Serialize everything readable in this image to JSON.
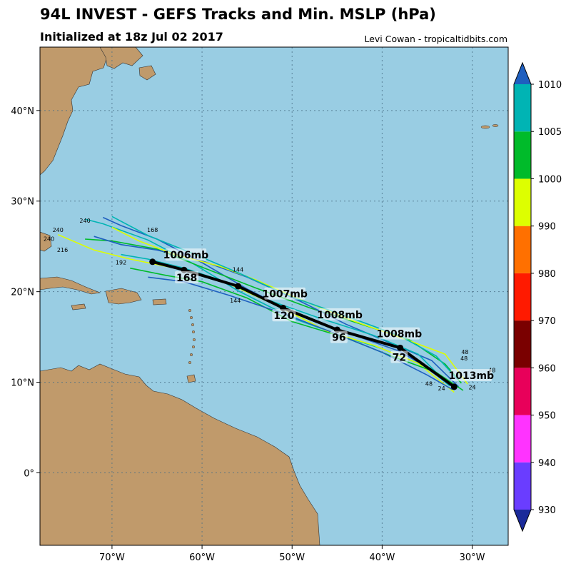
{
  "header": {
    "title": "94L INVEST - GEFS Tracks and Min. MSLP (hPa)",
    "subtitle": "Initialized at 18z Jul 02 2017",
    "credit": "Levi Cowan - tropicaltidbits.com"
  },
  "map": {
    "lon_range": [
      -78,
      -26
    ],
    "lat_range": [
      -8,
      47
    ],
    "lon_ticks": [
      {
        "value": -70,
        "label": "70°W"
      },
      {
        "value": -60,
        "label": "60°W"
      },
      {
        "value": -50,
        "label": "50°W"
      },
      {
        "value": -40,
        "label": "40°W"
      },
      {
        "value": -30,
        "label": "30°W"
      }
    ],
    "lat_ticks": [
      {
        "value": 0,
        "label": "0°"
      },
      {
        "value": 10,
        "label": "10°N"
      },
      {
        "value": 20,
        "label": "20°N"
      },
      {
        "value": 30,
        "label": "30°N"
      },
      {
        "value": 40,
        "label": "40°N"
      }
    ],
    "ocean_color": "#99cde3",
    "land_color": "#c09a6b",
    "grid": "dotted"
  },
  "colorbar": {
    "levels": [
      930,
      940,
      950,
      960,
      970,
      980,
      990,
      1000,
      1005,
      1010
    ],
    "colors": [
      "#6a3dff",
      "#ff33ff",
      "#e8005a",
      "#7a0000",
      "#ff1a00",
      "#ff7000",
      "#ddff00",
      "#00bb2a",
      "#00b4b4"
    ],
    "under_color": "#1a2a9a",
    "over_color": "#1f5fbf"
  },
  "chart_data": {
    "type": "track-map",
    "mean_track": [
      {
        "lon": -32,
        "lat": 9.5
      },
      {
        "lon": -38,
        "lat": 13.8
      },
      {
        "lon": -45,
        "lat": 15.8
      },
      {
        "lon": -51,
        "lat": 18.2
      },
      {
        "lon": -56,
        "lat": 20.6
      },
      {
        "lon": -62,
        "lat": 22.4
      },
      {
        "lon": -65.5,
        "lat": 23.3
      }
    ],
    "annotations": [
      {
        "label": "1013mb",
        "lon": -30.1,
        "lat": 10.6
      },
      {
        "label": "1008mb",
        "lon": -38.1,
        "lat": 15.2
      },
      {
        "label": "72",
        "lon": -38.1,
        "lat": 12.6
      },
      {
        "label": "1008mb",
        "lon": -44.7,
        "lat": 17.3
      },
      {
        "label": "96",
        "lon": -44.8,
        "lat": 14.8
      },
      {
        "label": "1007mb",
        "lon": -50.8,
        "lat": 19.6
      },
      {
        "label": "120",
        "lon": -50.9,
        "lat": 17.2
      },
      {
        "label": "1006mb",
        "lon": -61.8,
        "lat": 23.9
      },
      {
        "label": "168",
        "lon": -61.7,
        "lat": 21.4
      }
    ],
    "member_colors": [
      "#1f5fbf",
      "#00b4b4",
      "#00bb2a",
      "#ddff00"
    ],
    "member_tracks": [
      [
        [
          -31.8,
          9.3
        ],
        [
          -34,
          11
        ],
        [
          -38,
          13.4
        ],
        [
          -42,
          14.8
        ],
        [
          -46,
          16.2
        ],
        [
          -50,
          17.8
        ],
        [
          -55,
          20.3
        ],
        [
          -60,
          23.2
        ],
        [
          -65,
          25.8
        ],
        [
          -69,
          27.3
        ],
        [
          -71,
          28.2
        ]
      ],
      [
        [
          -32.5,
          9.6
        ],
        [
          -35,
          11.7
        ],
        [
          -40,
          13.7
        ],
        [
          -45,
          15.3
        ],
        [
          -50,
          17.1
        ],
        [
          -56,
          20.1
        ],
        [
          -61,
          23.1
        ],
        [
          -66,
          25.7
        ],
        [
          -71,
          27.5
        ],
        [
          -73,
          28
        ]
      ],
      [
        [
          -31.2,
          9.9
        ],
        [
          -33,
          12
        ],
        [
          -37,
          14.7
        ],
        [
          -42,
          16.3
        ],
        [
          -48,
          18.2
        ],
        [
          -54,
          20.4
        ],
        [
          -60,
          22.7
        ],
        [
          -65,
          24.7
        ],
        [
          -70,
          25.6
        ],
        [
          -73,
          25.8
        ]
      ],
      [
        [
          -32,
          8.9
        ],
        [
          -36,
          12.1
        ],
        [
          -41,
          14.1
        ],
        [
          -46,
          15.6
        ],
        [
          -52,
          18.6
        ],
        [
          -58,
          21.3
        ],
        [
          -63,
          22.6
        ],
        [
          -68,
          23.6
        ],
        [
          -72,
          24.6
        ],
        [
          -76,
          26.3
        ]
      ],
      [
        [
          -31.5,
          9.5
        ],
        [
          -34.5,
          12.4
        ],
        [
          -39,
          14.3
        ],
        [
          -44,
          16.4
        ],
        [
          -49,
          18.9
        ],
        [
          -55,
          21.6
        ],
        [
          -60,
          23.4
        ],
        [
          -65,
          24.6
        ],
        [
          -69,
          25.2
        ],
        [
          -72,
          26.1
        ]
      ],
      [
        [
          -33,
          10.1
        ],
        [
          -36,
          13.1
        ],
        [
          -41,
          15.2
        ],
        [
          -47,
          17.1
        ],
        [
          -53,
          19.2
        ],
        [
          -58,
          21.3
        ],
        [
          -62,
          22.6
        ],
        [
          -66,
          23.6
        ],
        [
          -69,
          24.1
        ]
      ],
      [
        [
          -31,
          9.1
        ],
        [
          -34,
          11.1
        ],
        [
          -39,
          12.9
        ],
        [
          -44,
          14.9
        ],
        [
          -50,
          16.7
        ],
        [
          -55,
          19.3
        ],
        [
          -60,
          21.1
        ],
        [
          -64,
          21.8
        ],
        [
          -68,
          22.6
        ]
      ],
      [
        [
          -30.5,
          9.8
        ],
        [
          -33,
          13.1
        ],
        [
          -37,
          14.6
        ],
        [
          -43,
          16.7
        ],
        [
          -49,
          19.1
        ],
        [
          -54,
          21.3
        ],
        [
          -58,
          22.8
        ],
        [
          -63,
          24.1
        ],
        [
          -67,
          25.6
        ],
        [
          -70,
          27.1
        ]
      ],
      [
        [
          -32.2,
          9.2
        ],
        [
          -35,
          10.8
        ],
        [
          -40,
          13.3
        ],
        [
          -45,
          15.3
        ],
        [
          -51,
          17.6
        ],
        [
          -57,
          19.6
        ],
        [
          -62,
          21.1
        ],
        [
          -66,
          21.6
        ]
      ],
      [
        [
          -31.6,
          10.3
        ],
        [
          -34,
          12.9
        ],
        [
          -38,
          15.1
        ],
        [
          -44,
          17.3
        ],
        [
          -50,
          19.4
        ],
        [
          -56,
          22.1
        ],
        [
          -61,
          24.2
        ],
        [
          -66,
          26.2
        ],
        [
          -70,
          28.3
        ]
      ]
    ],
    "extra_markers": [
      {
        "label": "48",
        "lon": -27.8,
        "lat": 11.1
      },
      {
        "label": "48",
        "lon": -30.8,
        "lat": 13.1
      },
      {
        "label": "48",
        "lon": -30.9,
        "lat": 12.4
      },
      {
        "label": "48",
        "lon": -34.8,
        "lat": 9.6
      },
      {
        "label": "24",
        "lon": -30,
        "lat": 9.2
      },
      {
        "label": "24",
        "lon": -33.4,
        "lat": 9.1
      },
      {
        "label": "240",
        "lon": -73,
        "lat": 27.6
      },
      {
        "label": "240",
        "lon": -76,
        "lat": 26.6
      },
      {
        "label": "240",
        "lon": -77,
        "lat": 25.6
      },
      {
        "label": "216",
        "lon": -75.5,
        "lat": 24.4
      },
      {
        "label": "192",
        "lon": -69,
        "lat": 23
      },
      {
        "label": "168",
        "lon": -65.5,
        "lat": 26.6
      },
      {
        "label": "144",
        "lon": -56,
        "lat": 22.2
      },
      {
        "label": "144",
        "lon": -56.3,
        "lat": 18.8
      }
    ]
  }
}
